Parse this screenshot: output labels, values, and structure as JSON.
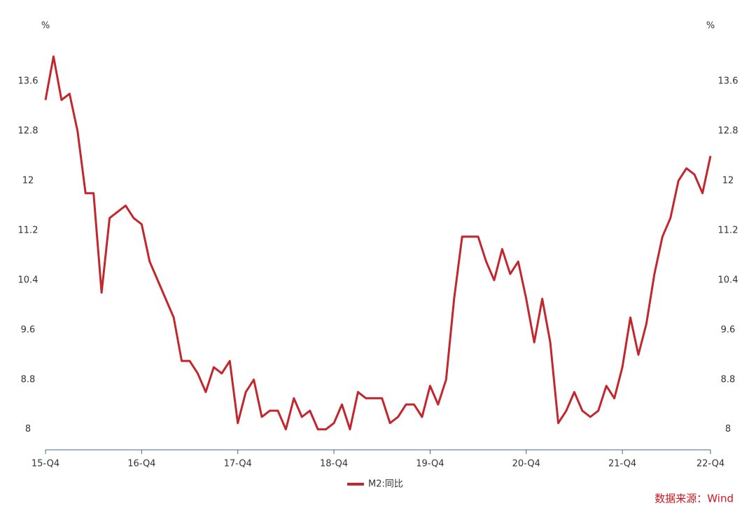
{
  "chart_data": {
    "type": "line",
    "y_unit": "%",
    "categories": [
      "15-Q4",
      null,
      null,
      null,
      null,
      null,
      null,
      null,
      null,
      null,
      null,
      null,
      "16-Q4",
      null,
      null,
      null,
      null,
      null,
      null,
      null,
      null,
      null,
      null,
      null,
      "17-Q4",
      null,
      null,
      null,
      null,
      null,
      null,
      null,
      null,
      null,
      null,
      null,
      "18-Q4",
      null,
      null,
      null,
      null,
      null,
      null,
      null,
      null,
      null,
      null,
      null,
      "19-Q4",
      null,
      null,
      null,
      null,
      null,
      null,
      null,
      null,
      null,
      null,
      null,
      "20-Q4",
      null,
      null,
      null,
      null,
      null,
      null,
      null,
      null,
      null,
      null,
      null,
      "21-Q4",
      null,
      null,
      null,
      null,
      null,
      null,
      null,
      null,
      null,
      null,
      "22-Q4"
    ],
    "series": [
      {
        "name": "M2:同比",
        "color": "#c1272d",
        "values": [
          13.3,
          14.0,
          13.3,
          13.4,
          12.8,
          11.8,
          11.8,
          10.2,
          11.4,
          11.5,
          11.6,
          11.4,
          11.3,
          10.7,
          10.4,
          10.1,
          9.8,
          9.1,
          9.1,
          8.9,
          8.6,
          9.0,
          8.9,
          9.1,
          8.1,
          8.6,
          8.8,
          8.2,
          8.3,
          8.3,
          8.0,
          8.5,
          8.2,
          8.3,
          8.0,
          8.0,
          8.1,
          8.4,
          8.0,
          8.6,
          8.5,
          8.5,
          8.5,
          8.1,
          8.2,
          8.4,
          8.4,
          8.2,
          8.7,
          8.4,
          8.8,
          10.1,
          11.1,
          11.1,
          11.1,
          10.7,
          10.4,
          10.9,
          10.5,
          10.7,
          10.1,
          9.4,
          10.1,
          9.4,
          8.1,
          8.3,
          8.6,
          8.3,
          8.2,
          8.3,
          8.7,
          8.5,
          9.0,
          9.8,
          9.2,
          9.7,
          10.5,
          11.1,
          11.4,
          12.0,
          12.2,
          12.1,
          11.8,
          12.4
        ]
      }
    ],
    "ylim": [
      7.67,
      14.3
    ],
    "yticks": [
      8,
      8.8,
      9.6,
      10.4,
      11.2,
      12,
      12.8,
      13.6
    ],
    "grid": false,
    "legend": "bottom",
    "source": "数据来源：Wind"
  }
}
